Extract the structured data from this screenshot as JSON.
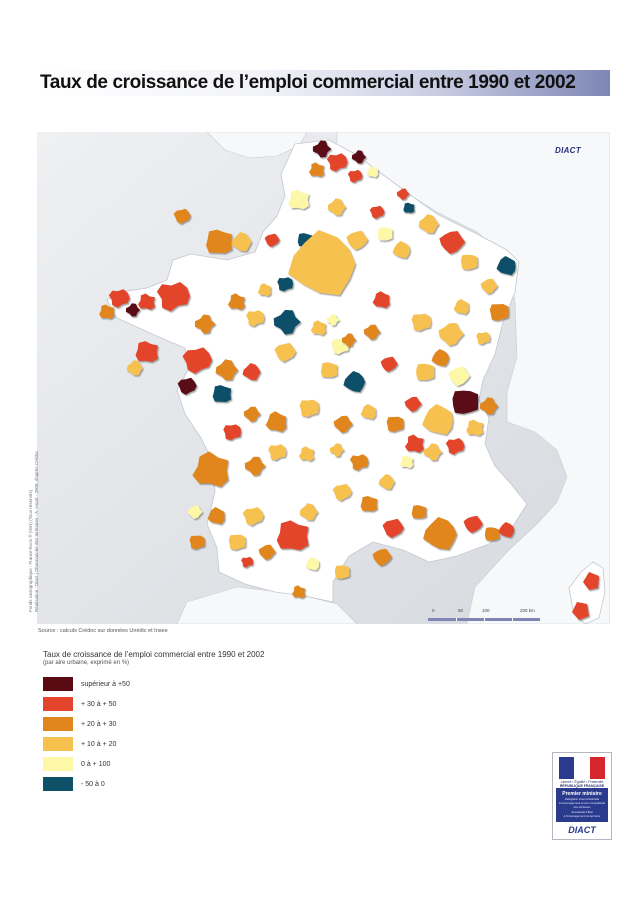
{
  "title": "Taux de croissance de l’emploi commercial entre 1990 et 2002",
  "logo_top": "DIACT",
  "credits": [
    "Fonds cartographique : France-Ecos ® (IGN) (Tous réservés)",
    "Réalisation : Diact | Observatoire des territoires - A. Huart - 2008, d'après Crédoc"
  ],
  "source": "Source : calculs Crédoc sur données Unédic et Insee",
  "legend": {
    "title": "Taux de croissance de l’emploi commercial entre 1990 et 2002",
    "subtitle": "(par aire urbaine, exprimé en %)",
    "items": [
      {
        "label": "supérieur à +50",
        "color": "#5a0a12"
      },
      {
        "label": "+ 30 à + 50",
        "color": "#e2452c"
      },
      {
        "label": "+ 20 à + 30",
        "color": "#e1861d"
      },
      {
        "label": "+ 10 à + 20",
        "color": "#f6c14f"
      },
      {
        "label": "0 à + 100",
        "color": "#fdf7a8"
      },
      {
        "label": "- 50 à 0",
        "color": "#0e5068"
      }
    ]
  },
  "scale": {
    "labels": [
      "0",
      "50",
      "100",
      "200 km"
    ]
  },
  "logo": {
    "motto": "Liberté • Égalité • Fraternité",
    "republic": "RÉPUBLIQUE FRANÇAISE",
    "ministry": "Premier ministre",
    "lines": [
      "Délégation interministérielle",
      "à l'aménagement et à la compétitivité",
      "des territoires",
      "Secrétariat d'État",
      "à l'Aménagement du territoire"
    ],
    "brand": "DIACT"
  },
  "map": {
    "land_color": "#ffffff",
    "sea_color": "#e4e6e9",
    "border_color": "#bfc4cb"
  }
}
